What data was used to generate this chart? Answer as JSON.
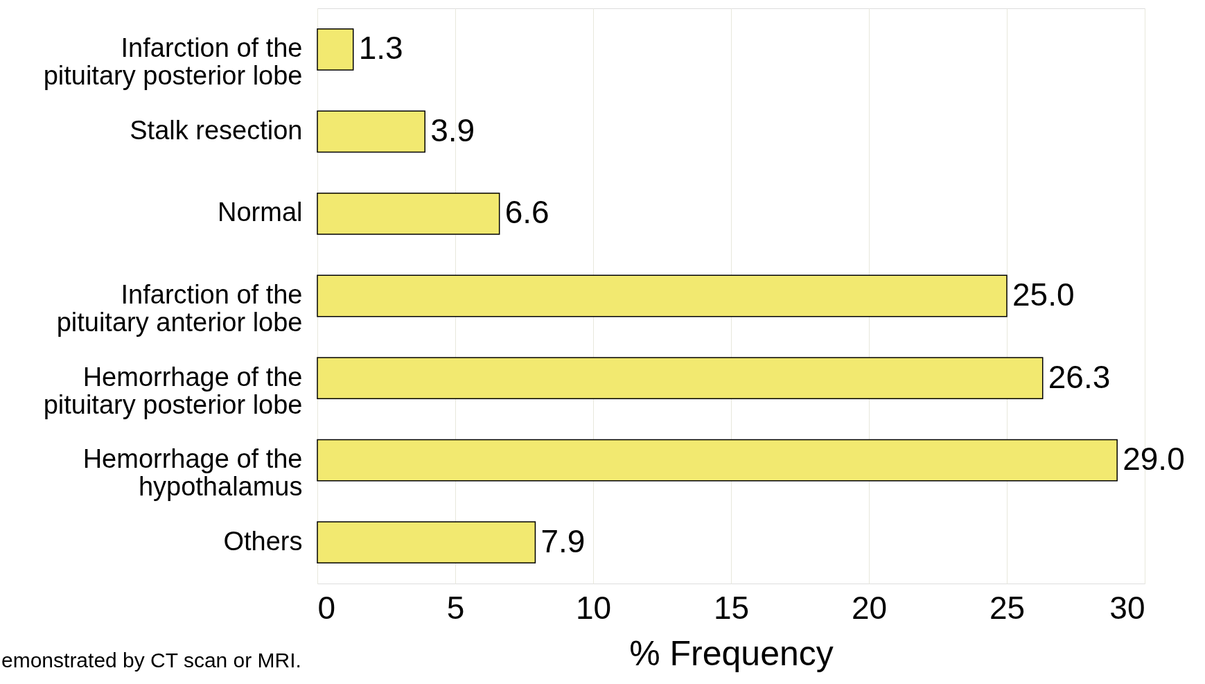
{
  "chart_data": {
    "type": "bar",
    "orientation": "horizontal",
    "categories": [
      "Infarction of the\npituitary posterior lobe",
      "Stalk resection",
      "Normal",
      "Infarction of the\npituitary anterior lobe",
      "Hemorrhage of the\npituitary posterior lobe",
      "Hemorrhage of the\nhypothalamus",
      "Others"
    ],
    "values": [
      1.3,
      3.9,
      6.6,
      25.0,
      26.3,
      29.0,
      7.9
    ],
    "value_labels": [
      "1.3",
      "3.9",
      "6.6",
      "25.0",
      "26.3",
      "29.0",
      "7.9"
    ],
    "color": "#f2e970",
    "xlim": [
      0,
      30
    ],
    "xticks": [
      0,
      5,
      10,
      15,
      20,
      25,
      30
    ],
    "xlabel": "% Frequency",
    "grid": "x",
    "annotations": [
      "emonstrated by CT scan or MRI."
    ]
  }
}
